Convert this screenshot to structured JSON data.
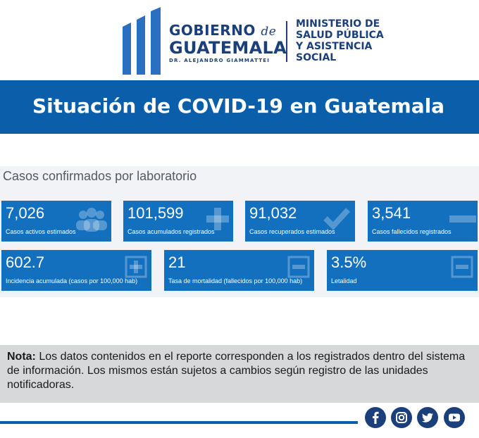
{
  "header": {
    "gobierno_line1": "GOBIERNO",
    "gobierno_de": "de",
    "gobierno_line2": "GUATEMALA",
    "gobierno_line3": "DR. ALEJANDRO GIAMMATTEI",
    "ministerio_lines": [
      "MINISTERIO DE",
      "SALUD PÚBLICA",
      "Y ASISTENCIA",
      "SOCIAL"
    ],
    "colors": {
      "brand": "#1b3f7a",
      "accent": "#0b5faa",
      "card": "#1270bf"
    }
  },
  "title": "Situación de COVID-19 en Guatemala",
  "section_title": "Casos confirmados por laboratorio",
  "cards_row1": [
    {
      "value": "7,026",
      "label": "Casos activos estimados",
      "icon": "people-icon"
    },
    {
      "value": "101,599",
      "label": "Casos acumulados registrados",
      "icon": "plus-icon"
    },
    {
      "value": "91,032",
      "label": "Casos recuperados estimados",
      "icon": "check-icon"
    },
    {
      "value": "3,541",
      "label": "Casos fallecidos registrados",
      "icon": "minus-icon"
    }
  ],
  "cards_row2": [
    {
      "value": "602.7",
      "label": "Incidencia acumulada (casos por 100,000 hab)",
      "icon": "plus-box-icon"
    },
    {
      "value": "21",
      "label": "Tasa de mortalidad (fallecidos por 100,000 hab)",
      "icon": "minus-box-icon"
    },
    {
      "value": "3.5%",
      "label": "Letalidad",
      "icon": "minus-box-icon"
    }
  ],
  "note": {
    "label": "Nota:",
    "text": " Los datos contenidos en el reporte corresponden a los registrados dentro del sistema de información. Los mismos están sujetos a cambios según registro de las unidades notificadoras."
  },
  "social": [
    "facebook-icon",
    "instagram-icon",
    "twitter-icon",
    "youtube-icon"
  ]
}
